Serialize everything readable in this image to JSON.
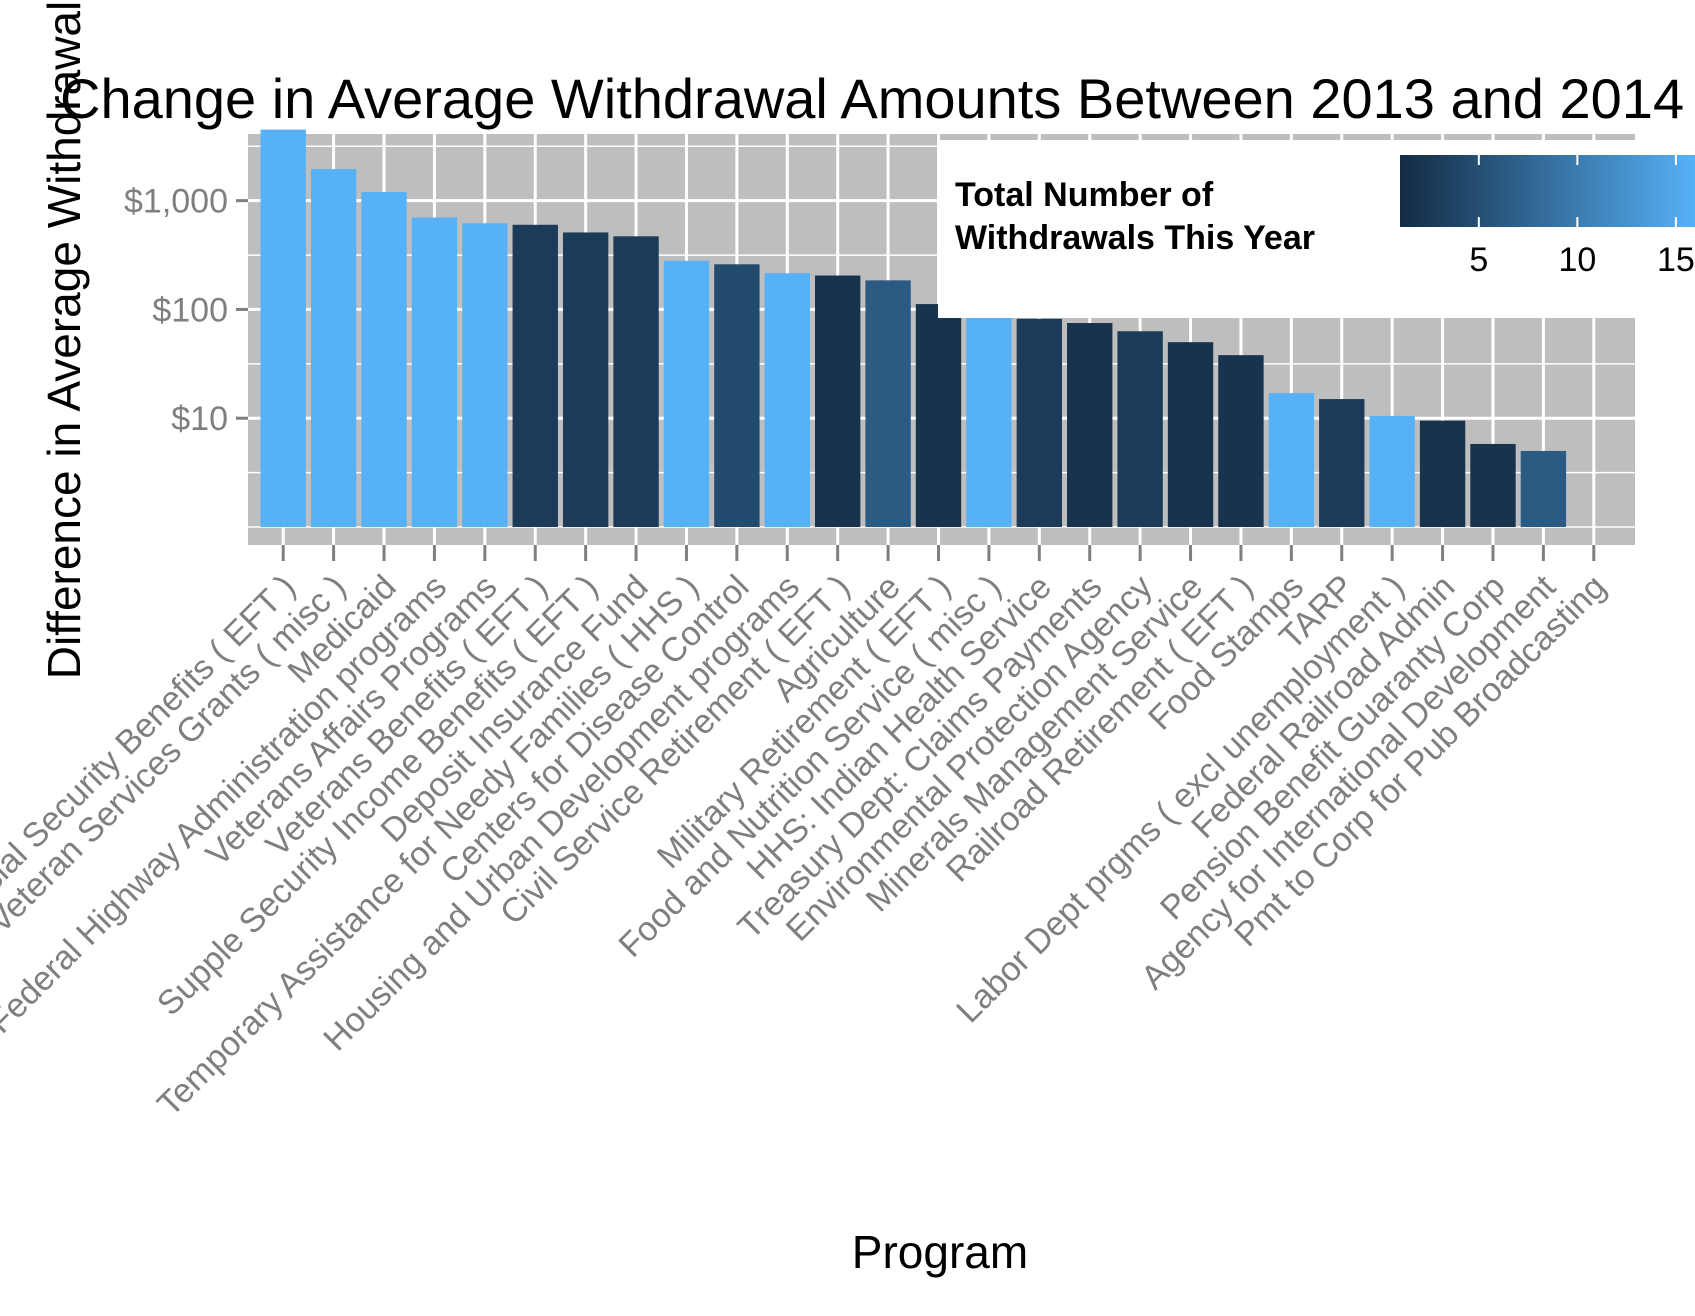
{
  "chart_data": {
    "type": "bar",
    "title": "Change in Average Withdrawal Amounts Between 2013 and 2014",
    "xlabel": "Program",
    "ylabel": "Difference in Average Withdrawal",
    "y_scale": "log10",
    "ylim": [
      1,
      6000
    ],
    "y_ticks": [
      {
        "value": 10,
        "label": "$10"
      },
      {
        "value": 100,
        "label": "$100"
      },
      {
        "value": 1000,
        "label": "$1,000"
      }
    ],
    "grid": true,
    "categories": [
      "Social Security Benefits ( EFT )",
      "Veteran Services Grants ( misc )",
      "Medicaid",
      "Federal Highway Administration programs",
      "Veterans Affairs Programs",
      "Veterans Benefits ( EFT )",
      "Supple Security Income Benefits ( EFT )",
      "Deposit Insurance Fund",
      "Temporary Assistance for Needy Families ( HHS )",
      "Centers for Disease Control",
      "Housing and Urban Development programs",
      "Civil Service Retirement ( EFT )",
      "Agriculture",
      "Military Retirement ( EFT )",
      "Food and Nutrition Service ( misc )",
      "HHS: Indian Health Service",
      "Treasury Dept: Claims Payments",
      "Environmental Protection Agency",
      "Minerals Management Service",
      "Railroad Retirement ( EFT )",
      "Food Stamps",
      "TARP",
      "Labor Dept prgms ( excl unemployment )",
      "Federal Railroad Admin",
      "Pension Benefit Guaranty Corp",
      "Agency for International Development",
      "Pmt to Corp for Pub Broadcasting"
    ],
    "values": [
      4500,
      1950,
      1200,
      700,
      620,
      600,
      510,
      470,
      280,
      260,
      215,
      205,
      185,
      112,
      96,
      82,
      75,
      63,
      50,
      38,
      17,
      15,
      10.5,
      9.5,
      5.8,
      5,
      null
    ],
    "color_values": [
      18,
      18,
      18,
      18,
      18,
      3,
      3,
      3,
      18,
      5,
      18,
      2,
      7,
      2,
      18,
      3,
      2,
      3,
      2,
      2,
      18,
      3,
      18,
      2,
      2,
      7,
      null
    ],
    "legend": {
      "title_lines": [
        "Total Number of",
        "Withdrawals This Year"
      ],
      "placement": "top-right",
      "ticks": [
        5,
        10,
        15
      ],
      "range": [
        1,
        18
      ],
      "color_low": "#132B43",
      "color_high": "#56B1F7"
    },
    "panel_background": "#BEBEBE",
    "grid_color": "#FFFFFF"
  }
}
